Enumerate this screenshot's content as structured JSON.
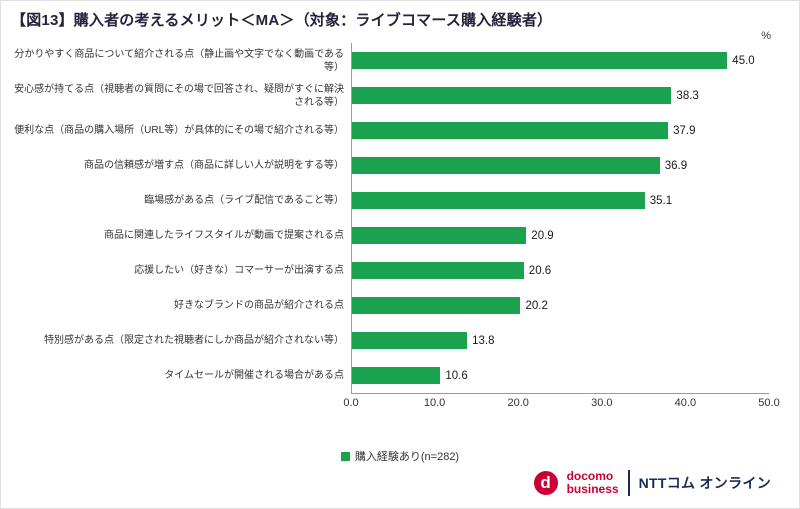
{
  "page": {
    "title": "【図13】購入者の考えるメリット＜MA＞（対象：ライブコマース購入経験者）"
  },
  "chart_data": {
    "type": "bar",
    "orientation": "horizontal",
    "title": "【図13】購入者の考えるメリット＜MA＞（対象：ライブコマース購入経験者）",
    "unit_label": "%",
    "categories": [
      "分かりやすく商品について紹介される点（静止画や文字でなく動画である等）",
      "安心感が持てる点（視聴者の質問にその場で回答され、疑問がすぐに解決される等）",
      "便利な点（商品の購入場所（URL等）が具体的にその場で紹介される等）",
      "商品の信頼感が増す点（商品に詳しい人が説明をする等）",
      "臨場感がある点（ライブ配信であること等）",
      "商品に関連したライフスタイルが動画で提案される点",
      "応援したい（好きな）コマーサーが出演する点",
      "好きなブランドの商品が紹介される点",
      "特別感がある点（限定された視聴者にしか商品が紹介されない等）",
      "タイムセールが開催される場合がある点"
    ],
    "values": [
      45.0,
      38.3,
      37.9,
      36.9,
      35.1,
      20.9,
      20.6,
      20.2,
      13.8,
      10.6
    ],
    "xlim": [
      0,
      50
    ],
    "xticks": [
      "0.0",
      "10.0",
      "20.0",
      "30.0",
      "40.0",
      "50.0"
    ],
    "bar_color": "#1aa24e",
    "grid": false,
    "legend_position": "bottom",
    "legend": [
      {
        "label": "購入経験あり(n=282)",
        "color": "#1aa24e"
      }
    ]
  },
  "footer": {
    "docomo_line1": "docomo",
    "docomo_line2": "business",
    "docomo_mark": "d",
    "ntt_label": "NTTコム オンライン"
  }
}
